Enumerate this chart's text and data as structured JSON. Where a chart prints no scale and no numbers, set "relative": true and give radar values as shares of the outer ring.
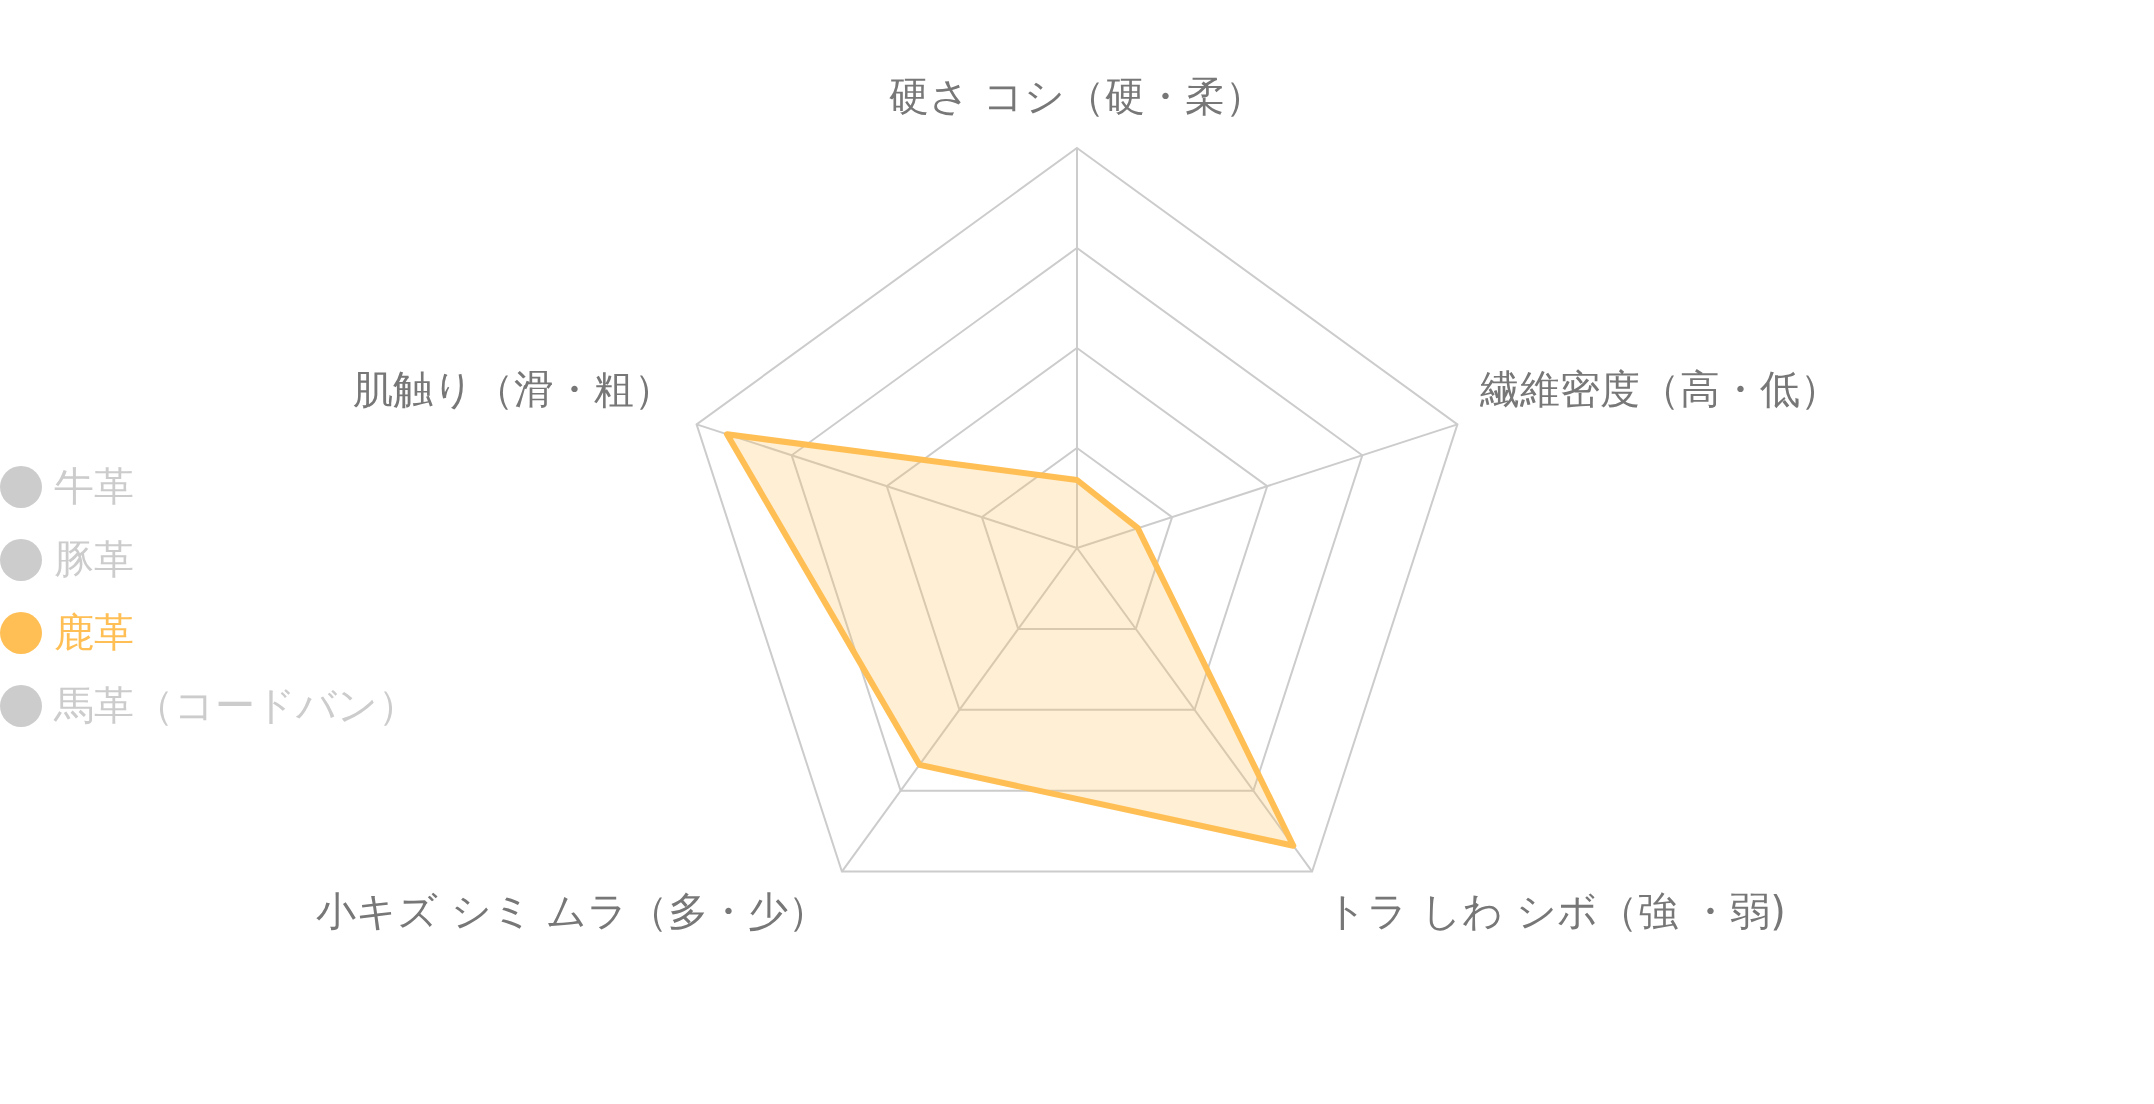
{
  "chart_data": {
    "type": "radar",
    "relative": true,
    "categories": [
      "硬さ コシ（硬・柔）",
      "繊維密度（高・低）",
      "トラ しわ シボ（強 ・弱)",
      "小キズ シミ ムラ（多・少）",
      "肌触り（滑・粗）"
    ],
    "series": [
      {
        "name": "鹿革",
        "color": "#ffbf55",
        "values": [
          0.17,
          0.16,
          0.92,
          0.67,
          0.92
        ]
      }
    ],
    "annotations": [
      "牛革",
      "豚革",
      "馬革（コードバン）"
    ],
    "legend": "left",
    "grid": true,
    "marker": "none"
  }
}
